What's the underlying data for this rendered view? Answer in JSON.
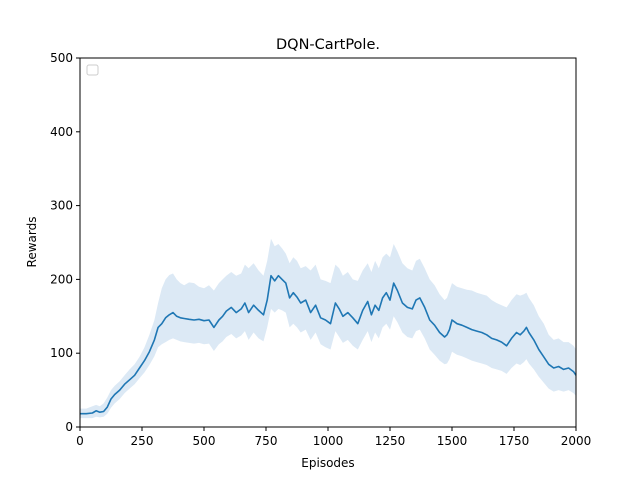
{
  "chart_data": {
    "type": "line",
    "title": "DQN-CartPole.",
    "xlabel": "Episodes",
    "ylabel": "Rewards",
    "xlim": [
      0,
      2000
    ],
    "ylim": [
      0,
      500
    ],
    "xticks": [
      0,
      250,
      500,
      750,
      1000,
      1250,
      1500,
      1750,
      2000
    ],
    "yticks": [
      0,
      100,
      200,
      300,
      400,
      500
    ],
    "grid": false,
    "legend": {
      "placement": "top-left",
      "entries": []
    },
    "colors": {
      "line": "#1f77b4",
      "band": "#dce9f5"
    },
    "series": [
      {
        "x": [
          0,
          25,
          50,
          65,
          80,
          95,
          110,
          125,
          140,
          160,
          180,
          200,
          220,
          240,
          260,
          280,
          300,
          315,
          330,
          345,
          360,
          375,
          390,
          405,
          420,
          440,
          460,
          480,
          500,
          520,
          540,
          560,
          575,
          590,
          610,
          630,
          650,
          665,
          680,
          700,
          720,
          740,
          755,
          770,
          785,
          800,
          815,
          830,
          845,
          860,
          875,
          890,
          910,
          930,
          950,
          970,
          990,
          1010,
          1030,
          1045,
          1060,
          1080,
          1100,
          1120,
          1140,
          1160,
          1175,
          1190,
          1205,
          1220,
          1235,
          1250,
          1265,
          1280,
          1300,
          1320,
          1340,
          1355,
          1370,
          1390,
          1410,
          1430,
          1450,
          1470,
          1480,
          1490,
          1500,
          1520,
          1540,
          1560,
          1580,
          1600,
          1620,
          1640,
          1660,
          1680,
          1700,
          1720,
          1740,
          1760,
          1775,
          1790,
          1800,
          1810,
          1830,
          1850,
          1870,
          1890,
          1910,
          1930,
          1950,
          1970,
          1990,
          2000
        ],
        "y": [
          18,
          18,
          19,
          22,
          20,
          21,
          27,
          38,
          44,
          50,
          58,
          64,
          70,
          80,
          90,
          102,
          118,
          135,
          140,
          148,
          152,
          155,
          150,
          148,
          147,
          146,
          145,
          146,
          144,
          145,
          135,
          145,
          150,
          157,
          162,
          155,
          160,
          168,
          155,
          165,
          158,
          152,
          172,
          205,
          198,
          205,
          200,
          195,
          175,
          182,
          176,
          168,
          172,
          155,
          165,
          148,
          145,
          140,
          168,
          160,
          150,
          155,
          148,
          140,
          158,
          170,
          152,
          165,
          158,
          175,
          182,
          172,
          195,
          185,
          168,
          162,
          160,
          172,
          175,
          162,
          145,
          138,
          128,
          122,
          125,
          132,
          145,
          140,
          138,
          135,
          132,
          130,
          128,
          125,
          120,
          118,
          115,
          110,
          120,
          128,
          125,
          130,
          135,
          128,
          118,
          105,
          95,
          85,
          80,
          82,
          78,
          80,
          75,
          70
        ],
        "upper": [
          25,
          25,
          28,
          30,
          28,
          32,
          40,
          50,
          56,
          62,
          70,
          78,
          85,
          95,
          108,
          125,
          145,
          168,
          188,
          200,
          206,
          208,
          200,
          195,
          192,
          196,
          195,
          190,
          188,
          192,
          185,
          195,
          200,
          205,
          210,
          205,
          208,
          220,
          215,
          222,
          212,
          205,
          225,
          255,
          245,
          248,
          242,
          235,
          222,
          230,
          225,
          215,
          218,
          212,
          220,
          200,
          198,
          195,
          220,
          215,
          205,
          210,
          200,
          198,
          212,
          222,
          210,
          225,
          215,
          230,
          235,
          230,
          248,
          238,
          222,
          215,
          212,
          225,
          228,
          215,
          200,
          192,
          180,
          172,
          175,
          185,
          195,
          190,
          188,
          186,
          185,
          182,
          180,
          178,
          172,
          168,
          165,
          162,
          172,
          180,
          178,
          180,
          182,
          175,
          165,
          150,
          140,
          125,
          118,
          120,
          115,
          115,
          110,
          105
        ],
        "lower": [
          12,
          12,
          12,
          14,
          13,
          14,
          18,
          26,
          32,
          38,
          46,
          52,
          58,
          66,
          74,
          84,
          96,
          108,
          112,
          115,
          118,
          120,
          118,
          116,
          115,
          114,
          113,
          114,
          112,
          113,
          103,
          112,
          116,
          122,
          126,
          120,
          124,
          130,
          118,
          128,
          120,
          116,
          135,
          160,
          155,
          160,
          158,
          155,
          135,
          140,
          135,
          128,
          132,
          118,
          128,
          112,
          108,
          105,
          130,
          122,
          114,
          118,
          110,
          105,
          118,
          130,
          115,
          128,
          120,
          135,
          140,
          132,
          150,
          142,
          128,
          122,
          120,
          130,
          132,
          120,
          105,
          98,
          90,
          85,
          86,
          92,
          102,
          98,
          96,
          93,
          90,
          88,
          86,
          84,
          80,
          78,
          76,
          72,
          80,
          86,
          84,
          88,
          92,
          86,
          78,
          68,
          60,
          52,
          48,
          50,
          48,
          50,
          46,
          42
        ]
      }
    ]
  }
}
